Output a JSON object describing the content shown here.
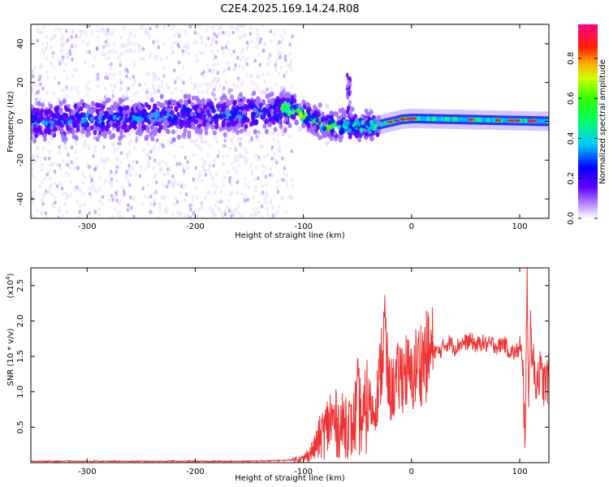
{
  "figure": {
    "title": "C2E4.2025.169.14.24.R08"
  },
  "chart_data": [
    {
      "type": "heatmap",
      "title": "",
      "xlabel": "Height of straight line (km)",
      "ylabel": "Frequency (Hz)",
      "xlim": [
        -352,
        127
      ],
      "ylim": [
        -50,
        50
      ],
      "xticks": [
        -300,
        -200,
        -100,
        0,
        100
      ],
      "yticks": [
        -40,
        -20,
        0,
        20,
        40
      ],
      "colorbar": {
        "label": "Normalized spectral amplitude",
        "range": [
          0.0,
          0.97
        ],
        "ticks": [
          "0.0",
          "0.2",
          "0.4",
          "0.6",
          "0.8"
        ],
        "tick_values": [
          0.0,
          0.2,
          0.4,
          0.6,
          0.8
        ],
        "colormap": "rainbow (purple to red to magenta)"
      },
      "description_points": {
        "noise_region_x": [
          -352,
          -110
        ],
        "main_band_center_hz": 0,
        "band_drift": [
          {
            "x": -350,
            "hz": 0
          },
          {
            "x": -150,
            "hz": 4
          },
          {
            "x": -110,
            "hz": 6
          },
          {
            "x": -80,
            "hz": -2
          },
          {
            "x": -40,
            "hz": -3
          },
          {
            "x": -10,
            "hz": 1
          },
          {
            "x": 0,
            "hz": 1.5
          },
          {
            "x": 127,
            "hz": 0
          }
        ],
        "spike": {
          "x": -58,
          "hz_top": 24
        }
      }
    },
    {
      "type": "line",
      "title": "",
      "xlabel": "Height of straight line (km)",
      "ylabel": "SNR (10 * v/v)",
      "scale_note": "(x10",
      "scale_exponent": "4",
      "xlim": [
        -352,
        127
      ],
      "ylim": [
        0,
        2.75
      ],
      "xticks": [
        -300,
        -200,
        -100,
        0,
        100
      ],
      "yticks": [
        "0.5",
        "1.0",
        "1.5",
        "2.0",
        "2.5"
      ],
      "ytick_values": [
        0.5,
        1.0,
        1.5,
        2.0,
        2.5
      ],
      "color": "#ee3333",
      "series": [
        {
          "name": "SNR",
          "x": [
            -352,
            -300,
            -250,
            -200,
            -150,
            -120,
            -110,
            -100,
            -95,
            -90,
            -85,
            -80,
            -75,
            -70,
            -65,
            -60,
            -55,
            -50,
            -45,
            -40,
            -35,
            -30,
            -25,
            -22,
            -20,
            -15,
            -10,
            -5,
            0,
            5,
            10,
            15,
            20,
            25,
            30,
            35,
            40,
            45,
            50,
            55,
            60,
            65,
            70,
            75,
            80,
            85,
            90,
            95,
            100,
            103,
            105,
            107,
            108,
            110,
            113,
            115,
            118,
            120,
            123,
            127
          ],
          "y": [
            0.02,
            0.02,
            0.02,
            0.02,
            0.02,
            0.03,
            0.04,
            0.06,
            0.12,
            0.2,
            0.35,
            0.45,
            0.6,
            0.55,
            0.5,
            0.6,
            0.45,
            0.8,
            0.55,
            0.9,
            0.7,
            1.1,
            1.9,
            1.2,
            1.0,
            1.1,
            1.25,
            1.3,
            1.15,
            1.4,
            1.45,
            1.5,
            1.6,
            1.55,
            1.65,
            1.7,
            1.62,
            1.68,
            1.7,
            1.72,
            1.65,
            1.7,
            1.66,
            1.68,
            1.63,
            1.7,
            1.58,
            1.55,
            1.6,
            1.2,
            0.4,
            2.6,
            1.0,
            1.9,
            1.3,
            1.15,
            1.3,
            1.2,
            1.1,
            1.2
          ]
        }
      ]
    }
  ]
}
